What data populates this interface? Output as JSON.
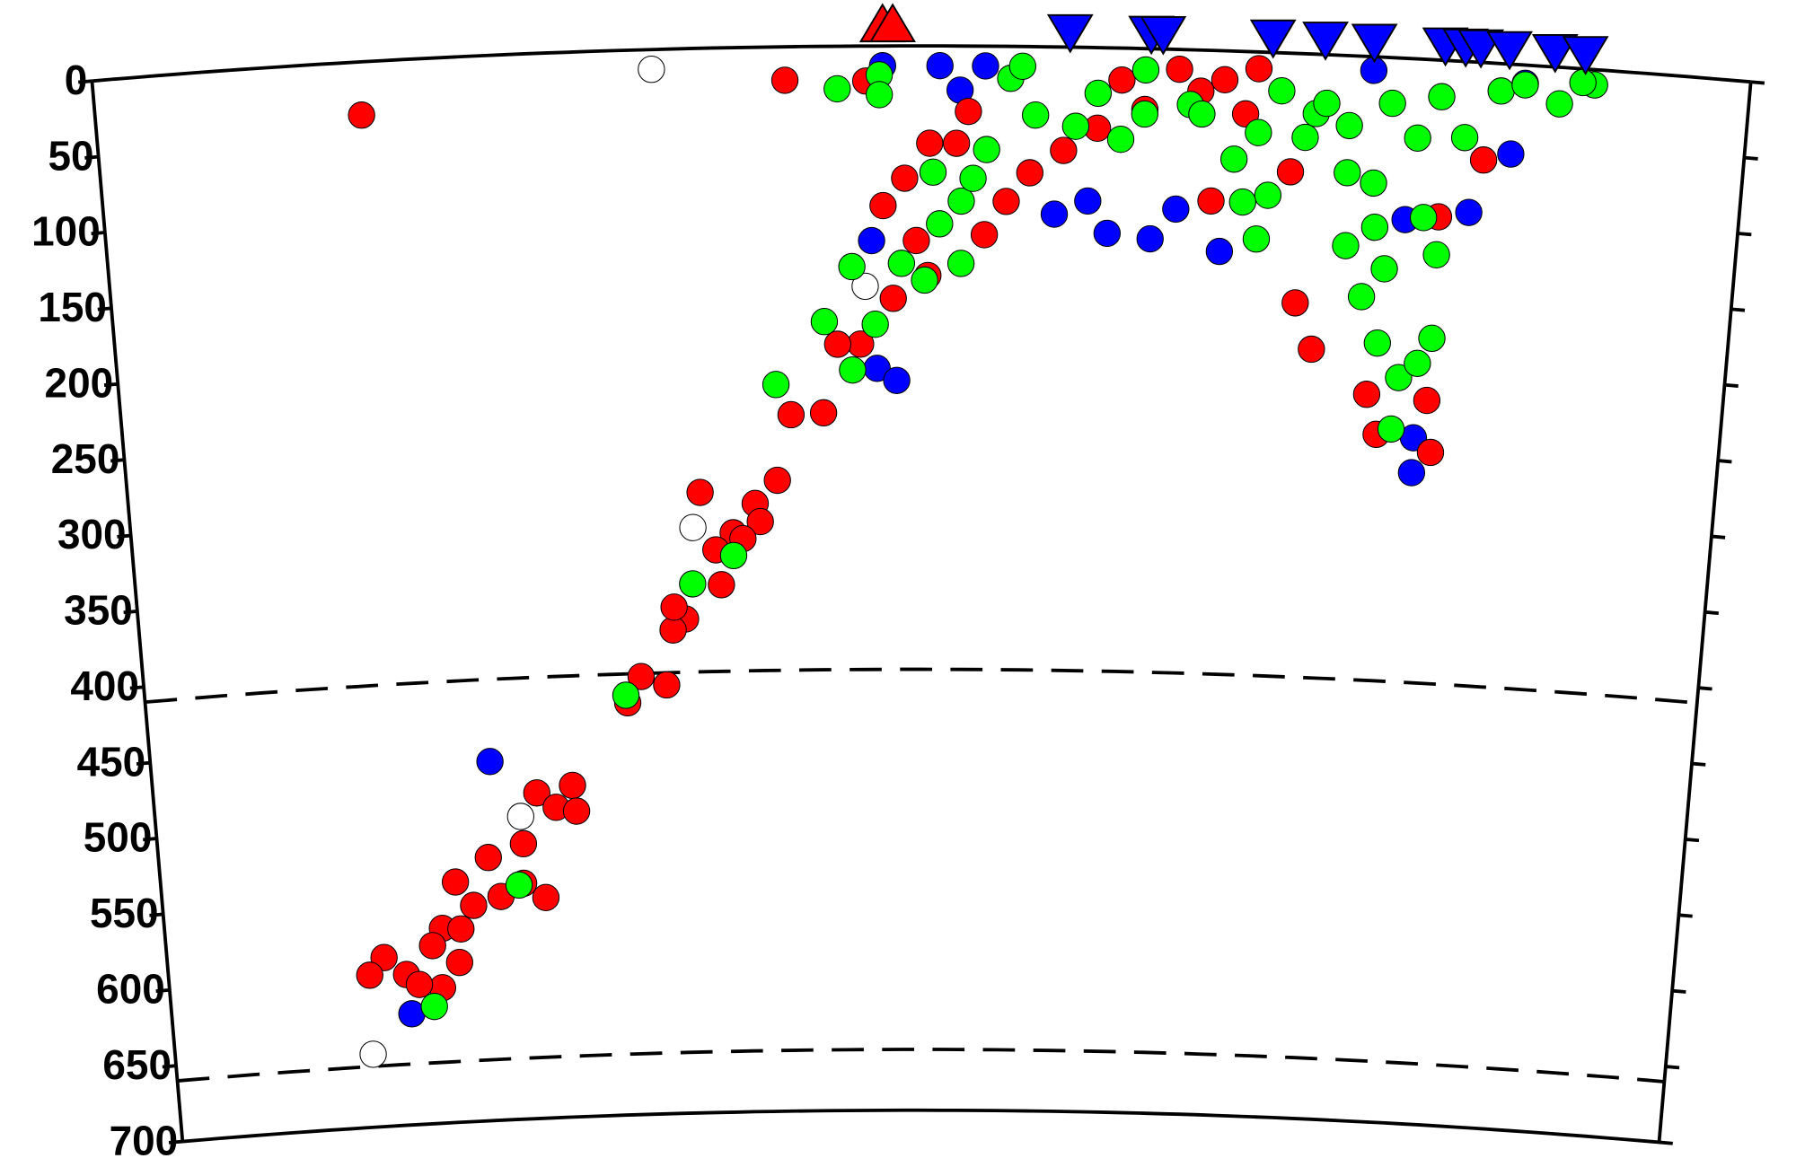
{
  "chart_data": {
    "type": "scatter",
    "xlim": [
      -4.88,
      4.94
    ],
    "ylim": [
      0,
      700
    ],
    "y_inverted": true,
    "yticks": [
      0,
      50,
      100,
      150,
      200,
      250,
      300,
      350,
      400,
      450,
      500,
      550,
      600,
      650,
      700
    ],
    "dashed_depths": [
      410,
      660
    ],
    "series": [
      {
        "color": "#0000ff",
        "marker": "circle",
        "x": [
          -0.2,
          0.14,
          0.41,
          0.26,
          -0.27,
          -0.24,
          -0.12,
          -2.72,
          -3.31,
          1.15,
          1.41,
          1.83,
          1.56,
          3.06,
          3.06,
          3.55,
          3.32,
          2.94,
          2.71,
          3.61,
          0.83,
          1.03
        ],
        "y": [
          13,
          13,
          13,
          29,
          128,
          212,
          220,
          464,
          627,
          122,
          125,
          132,
          105,
          272,
          249,
          59,
          99,
          106,
          9,
          12,
          110,
          101
        ]
      },
      {
        "color": "#ff0000",
        "marker": "circle",
        "x": [
          -3.3,
          -0.78,
          0.31,
          0.08,
          0.24,
          -0.2,
          -0.07,
          0.0,
          0.07,
          -0.14,
          -0.34,
          -0.48,
          -0.77,
          -0.57,
          0.41,
          0.54,
          0.68,
          0.88,
          1.08,
          1.36,
          1.69,
          1.96,
          1.77,
          2.24,
          2.3,
          2.41,
          2.76,
          2.83,
          3.17,
          3.13,
          3.14,
          3.39,
          2.03,
          1.56,
          1.83,
          -0.86,
          -1.0,
          -1.14,
          -1.25,
          -1.34,
          -1.22,
          -1.45,
          -1.53,
          -1.74,
          -1.58,
          -1.83,
          -0.97,
          -1.08,
          -1.52,
          -2.2,
          -2.43,
          -2.31,
          -2.18,
          -2.53,
          -2.76,
          -2.98,
          -2.87,
          -3.08,
          -3.15,
          -2.98,
          -3.33,
          -3.47,
          -3.57,
          -3.1,
          -3.25,
          -2.4,
          -2.69,
          -2.54,
          -2.96,
          -0.3,
          1.22
        ],
        "y": [
          35,
          22,
          43,
          64,
          64,
          105,
          87,
          128,
          151,
          166,
          196,
          196,
          242,
          241,
          124,
          102,
          83,
          68,
          53,
          40,
          27,
          41,
          99,
          78,
          164,
          194,
          222,
          248,
          258,
          224,
          103,
          64,
          11,
          13,
          19,
          285,
          300,
          319,
          330,
          292,
          353,
          375,
          382,
          412,
          418,
          429,
          312,
          323,
          367,
          482,
          486,
          496,
          499,
          519,
          527,
          542,
          558,
          572,
          583,
          595,
          601,
          589,
          600,
          611,
          608,
          555,
          553,
          545,
          573,
          23,
          21
        ]
      },
      {
        "color": "#ffffff",
        "marker": "circle",
        "x": [
          -1.57,
          -0.31,
          -1.39,
          -2.54,
          -3.58
        ],
        "y": [
          13,
          158,
          315,
          501,
          652
        ]
      },
      {
        "color": "#00ff00",
        "marker": "circle",
        "x": [
          -0.47,
          -0.22,
          -0.22,
          0.56,
          0.63,
          0.95,
          0.42,
          0.1,
          0.14,
          -0.09,
          -0.39,
          -0.56,
          -0.25,
          -0.86,
          -0.39,
          0.05,
          0.27,
          0.27,
          0.34,
          0.71,
          1.08,
          1.36,
          1.63,
          2.04,
          2.11,
          1.9,
          2.32,
          2.17,
          2.58,
          2.74,
          2.59,
          2.83,
          2.81,
          2.95,
          2.92,
          3.06,
          3.14,
          3.14,
          3.05,
          3.27,
          3.12,
          3.47,
          3.82,
          4.02,
          3.95,
          3.61,
          2.58,
          2.38,
          2.83,
          2.7,
          -1.4,
          -1.14,
          -1.84,
          -2.57,
          -3.16,
          2.05,
          1.96,
          1.36,
          1.7,
          2.44,
          1.22,
          2.99,
          2.76
        ],
        "y": [
          28,
          19,
          32,
          21,
          13,
          52,
          68,
          83,
          117,
          143,
          145,
          181,
          183,
          222,
          213,
          154,
          143,
          102,
          87,
          45,
          30,
          14,
          36,
          53,
          94,
          71,
          55,
          25,
          46,
          83,
          125,
          139,
          188,
          210,
          244,
          200,
          183,
          128,
          104,
          50,
          24,
          18,
          24,
          10,
          9,
          13,
          77,
          39,
          30,
          158,
          352,
          334,
          424,
          546,
          623,
          123,
          99,
          43,
          42,
          32,
          60,
          52,
          112
        ]
      },
      {
        "color": "#ff0000",
        "marker": "triangle-up",
        "x": [
          -0.2,
          -0.14
        ]
      },
      {
        "color": "#0000ff",
        "marker": "triangle-down",
        "x": [
          0.91,
          1.39,
          1.46,
          2.11,
          2.42,
          2.71,
          3.13,
          3.25,
          3.34,
          3.51,
          3.78,
          3.96
        ]
      }
    ]
  }
}
